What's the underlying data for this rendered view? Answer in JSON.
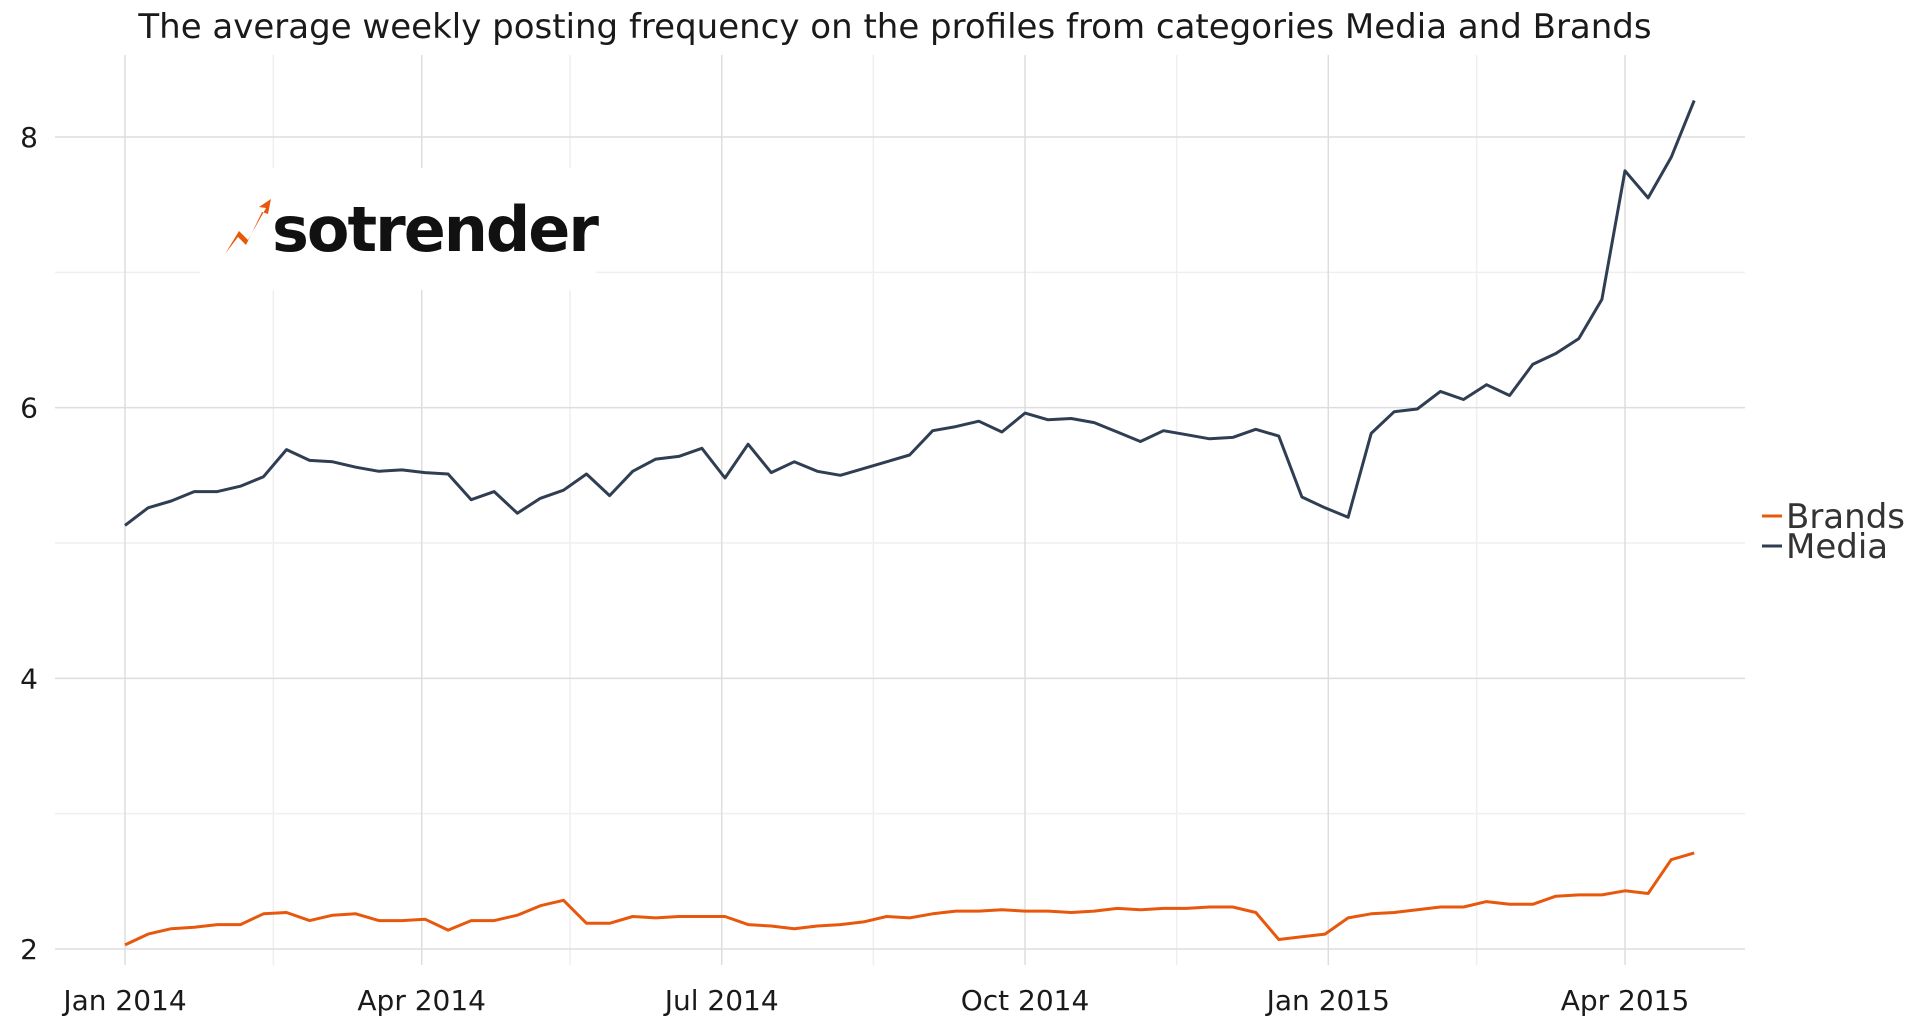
{
  "chart_data": {
    "type": "line",
    "title": "The average weekly posting frequency on the profiles from categories Media and Brands",
    "xlabel": "",
    "ylabel": "",
    "x_tick_labels": [
      "Jan 2014",
      "Apr 2014",
      "Jul 2014",
      "Oct 2014",
      "Jan 2015",
      "Apr 2015"
    ],
    "y_ticks": [
      2,
      4,
      6,
      8
    ],
    "ylim": [
      1.8,
      8.6
    ],
    "grid": true,
    "legend_position": "right",
    "logo": {
      "text": "sotrender",
      "icon": "lightning-arrow-icon"
    },
    "colors": {
      "Brands": "#E8580C",
      "Media": "#2F3E52",
      "grid_major": "#DDDDDD",
      "grid_minor": "#EFEFEF"
    },
    "x": [
      "2014-01-01",
      "2014-01-08",
      "2014-01-15",
      "2014-01-22",
      "2014-01-29",
      "2014-02-05",
      "2014-02-12",
      "2014-02-19",
      "2014-02-26",
      "2014-03-05",
      "2014-03-12",
      "2014-03-19",
      "2014-03-26",
      "2014-04-02",
      "2014-04-09",
      "2014-04-16",
      "2014-04-23",
      "2014-04-30",
      "2014-05-07",
      "2014-05-14",
      "2014-05-21",
      "2014-05-28",
      "2014-06-04",
      "2014-06-11",
      "2014-06-18",
      "2014-06-25",
      "2014-07-02",
      "2014-07-09",
      "2014-07-16",
      "2014-07-23",
      "2014-07-30",
      "2014-08-06",
      "2014-08-13",
      "2014-08-20",
      "2014-08-27",
      "2014-09-03",
      "2014-09-10",
      "2014-09-17",
      "2014-09-24",
      "2014-10-01",
      "2014-10-08",
      "2014-10-15",
      "2014-10-22",
      "2014-10-29",
      "2014-11-05",
      "2014-11-12",
      "2014-11-19",
      "2014-11-26",
      "2014-12-03",
      "2014-12-10",
      "2014-12-17",
      "2014-12-24",
      "2014-12-31",
      "2015-01-07",
      "2015-01-14",
      "2015-01-21",
      "2015-01-28",
      "2015-02-04",
      "2015-02-11",
      "2015-02-18",
      "2015-02-25",
      "2015-03-04",
      "2015-03-11",
      "2015-03-18",
      "2015-03-25",
      "2015-04-01",
      "2015-04-08",
      "2015-04-15",
      "2015-04-22"
    ],
    "series": [
      {
        "name": "Brands",
        "values": [
          2.03,
          2.11,
          2.15,
          2.16,
          2.18,
          2.18,
          2.26,
          2.27,
          2.21,
          2.25,
          2.26,
          2.21,
          2.21,
          2.22,
          2.14,
          2.21,
          2.21,
          2.25,
          2.32,
          2.36,
          2.19,
          2.19,
          2.24,
          2.23,
          2.24,
          2.24,
          2.24,
          2.18,
          2.17,
          2.15,
          2.17,
          2.18,
          2.2,
          2.24,
          2.23,
          2.26,
          2.28,
          2.28,
          2.29,
          2.28,
          2.28,
          2.27,
          2.28,
          2.3,
          2.29,
          2.3,
          2.3,
          2.31,
          2.31,
          2.27,
          2.07,
          2.09,
          2.11,
          2.23,
          2.26,
          2.27,
          2.29,
          2.31,
          2.31,
          2.35,
          2.33,
          2.33,
          2.39,
          2.4,
          2.4,
          2.43,
          2.41,
          2.66,
          2.71
        ]
      },
      {
        "name": "Media",
        "values": [
          5.13,
          5.26,
          5.31,
          5.38,
          5.38,
          5.42,
          5.49,
          5.69,
          5.61,
          5.6,
          5.56,
          5.53,
          5.54,
          5.52,
          5.51,
          5.32,
          5.38,
          5.22,
          5.33,
          5.39,
          5.51,
          5.35,
          5.53,
          5.62,
          5.64,
          5.7,
          5.48,
          5.73,
          5.52,
          5.6,
          5.53,
          5.5,
          5.55,
          5.6,
          5.65,
          5.83,
          5.86,
          5.9,
          5.82,
          5.96,
          5.91,
          5.92,
          5.89,
          5.82,
          5.75,
          5.83,
          5.8,
          5.77,
          5.78,
          5.84,
          5.79,
          5.34,
          5.26,
          5.19,
          5.81,
          5.97,
          5.99,
          6.12,
          6.06,
          6.17,
          6.09,
          6.32,
          6.4,
          6.51,
          6.8,
          7.75,
          7.55,
          7.85,
          8.27
        ]
      }
    ]
  }
}
